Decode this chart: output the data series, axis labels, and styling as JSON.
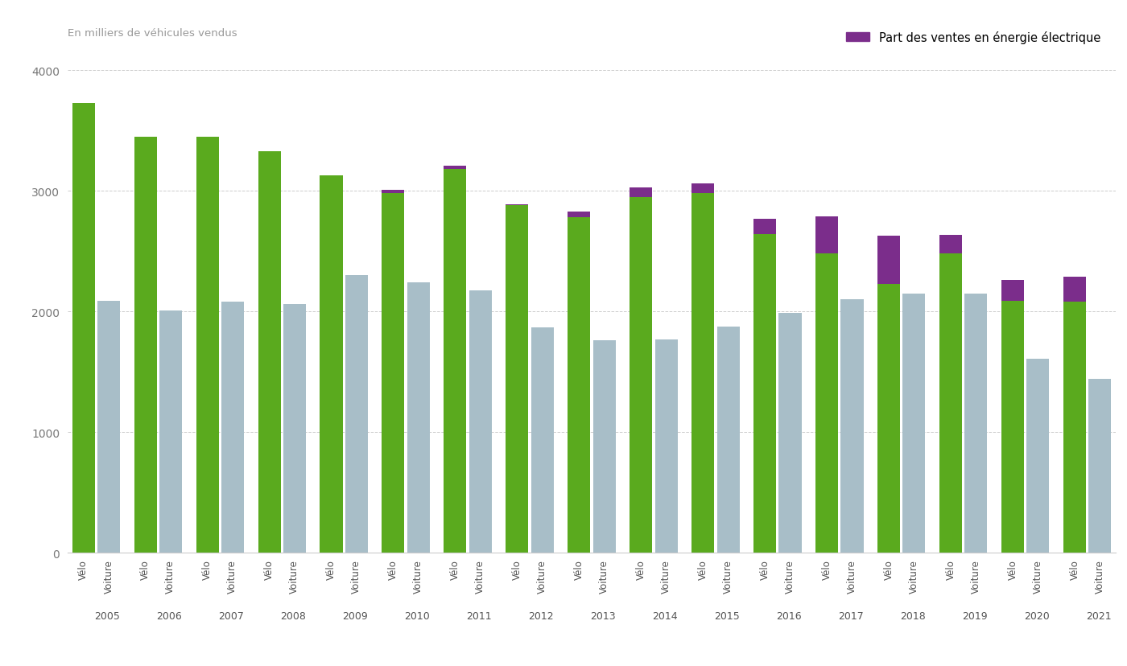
{
  "years": [
    2005,
    2006,
    2007,
    2008,
    2009,
    2010,
    2011,
    2012,
    2013,
    2014,
    2015,
    2016,
    2017,
    2018,
    2019,
    2020,
    2021
  ],
  "velo_green": [
    3730,
    3450,
    3450,
    3330,
    3130,
    2980,
    3180,
    2880,
    2780,
    2950,
    2980,
    2640,
    2480,
    2230,
    2480,
    2090,
    2080
  ],
  "velo_purple": [
    0,
    0,
    0,
    0,
    0,
    30,
    30,
    10,
    50,
    80,
    80,
    130,
    310,
    400,
    155,
    170,
    210
  ],
  "voiture": [
    2090,
    2010,
    2080,
    2060,
    2300,
    2240,
    2175,
    1870,
    1760,
    1765,
    1875,
    1990,
    2100,
    2150,
    2150,
    1610,
    1440
  ],
  "velo_color": "#5aaa1e",
  "velo_electric_color": "#7b2d8b",
  "voiture_color": "#a8bec8",
  "ylabel": "En milliers de véhicules vendus",
  "legend_label": "Part des ventes en énergie électrique",
  "ylim": [
    0,
    4200
  ],
  "yticks": [
    0,
    1000,
    2000,
    3000,
    4000
  ],
  "background_color": "#ffffff",
  "grid_color": "#cccccc"
}
